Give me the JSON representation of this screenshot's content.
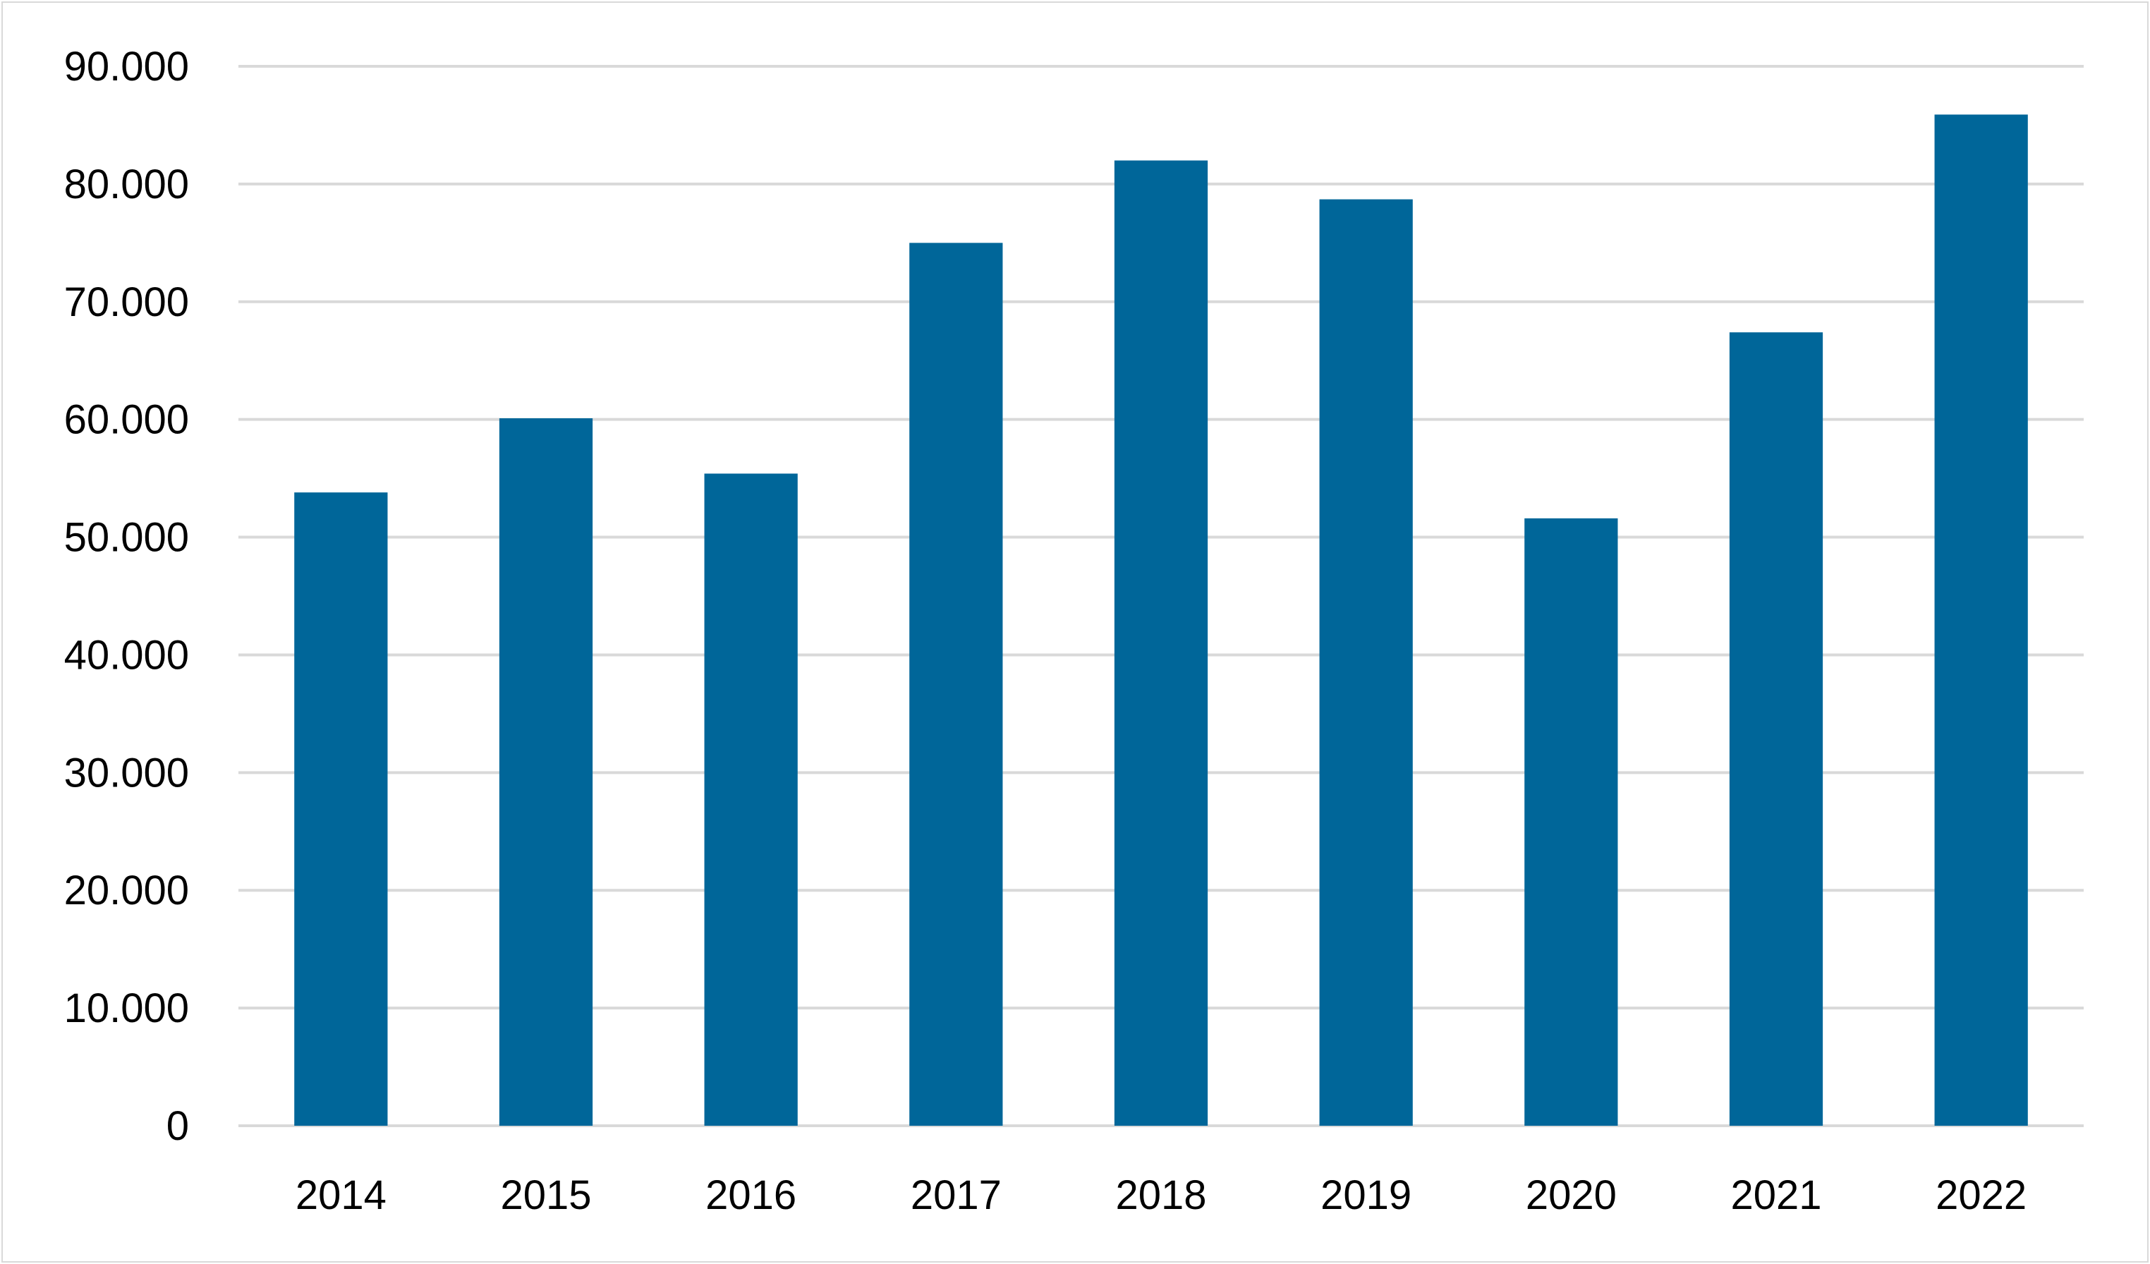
{
  "chart_data": {
    "type": "bar",
    "title": "",
    "xlabel": "",
    "ylabel": "",
    "categories": [
      "2014",
      "2015",
      "2016",
      "2017",
      "2018",
      "2019",
      "2020",
      "2021",
      "2022"
    ],
    "values": [
      53800,
      60100,
      55400,
      75000,
      82000,
      78700,
      51600,
      67400,
      85900
    ],
    "ylim": [
      0,
      90000
    ],
    "yticks": [
      0,
      10000,
      20000,
      30000,
      40000,
      50000,
      60000,
      70000,
      80000,
      90000
    ],
    "ytick_labels": [
      "0",
      "10.000",
      "20.000",
      "30.000",
      "40.000",
      "50.000",
      "60.000",
      "70.000",
      "80.000",
      "90.000"
    ],
    "grid": true,
    "legend": "none",
    "bar_color": "#006699",
    "grid_color": "#d9d9d9"
  }
}
